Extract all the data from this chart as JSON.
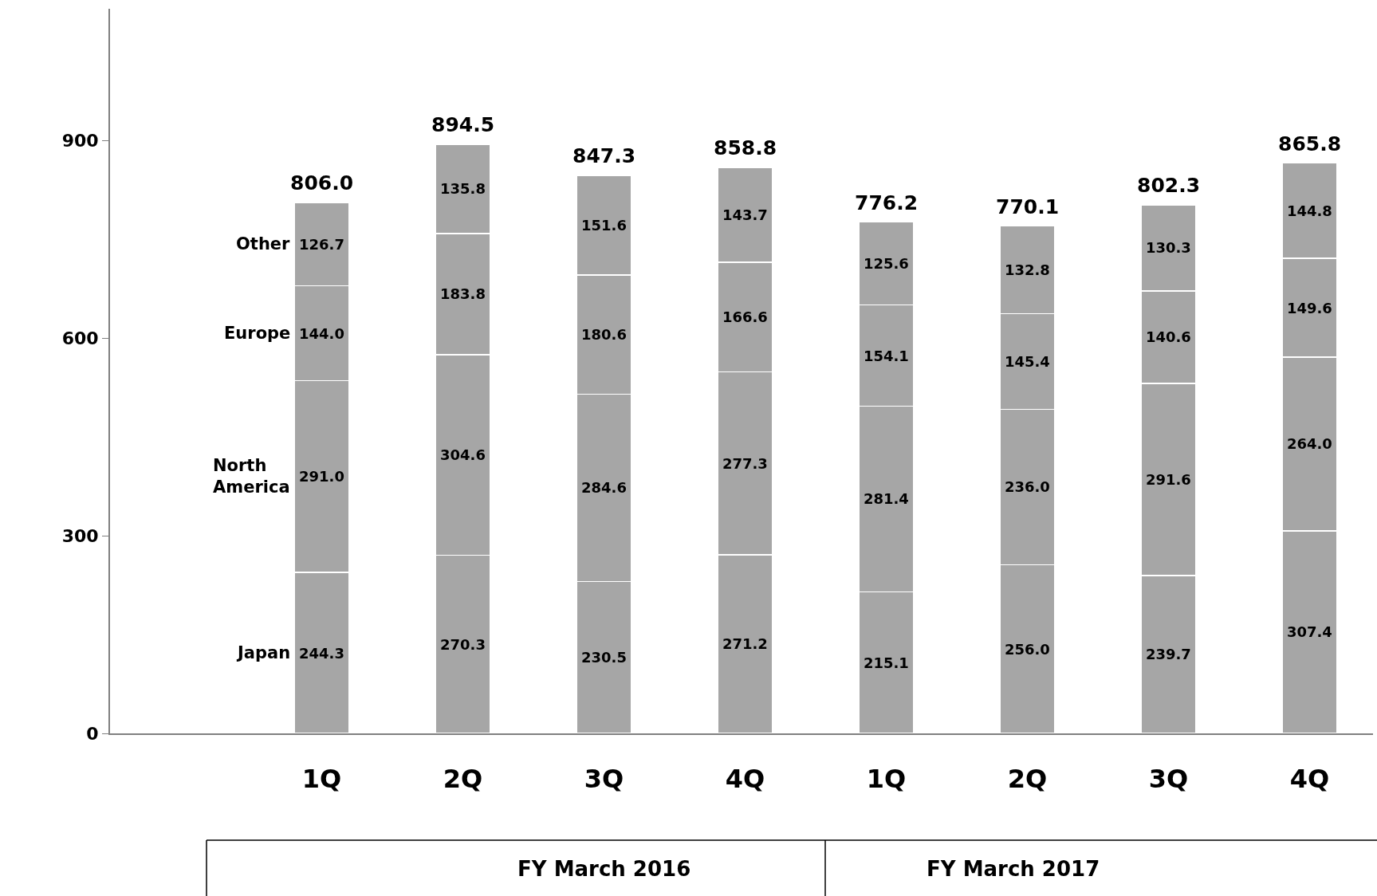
{
  "chart_data": {
    "type": "bar",
    "stacked": true,
    "legend": false,
    "categories": [
      "1Q",
      "2Q",
      "3Q",
      "4Q",
      "1Q",
      "2Q",
      "3Q",
      "4Q"
    ],
    "series": [
      {
        "name": "Japan",
        "color": "#a6a6a6",
        "values": [
          244.3,
          270.3,
          230.5,
          271.2,
          215.1,
          256.0,
          239.7,
          307.4
        ],
        "value_labels": [
          "244.3",
          "270.3",
          "230.5",
          "271.2",
          "215.1",
          "256.0",
          "239.7",
          "307.4"
        ]
      },
      {
        "name": "North America",
        "color": "#a6a6a6",
        "values": [
          291.0,
          304.6,
          284.6,
          277.3,
          281.4,
          236.0,
          291.6,
          264.0
        ],
        "value_labels": [
          "291.0",
          "304.6",
          "284.6",
          "277.3",
          "281.4",
          "236.0",
          "291.6",
          "264.0"
        ]
      },
      {
        "name": "Europe",
        "color": "#a6a6a6",
        "values": [
          144.0,
          183.8,
          180.6,
          166.6,
          154.1,
          145.4,
          140.6,
          149.6
        ],
        "value_labels": [
          "144.0",
          "183.8",
          "180.6",
          "166.6",
          "154.1",
          "145.4",
          "140.6",
          "149.6"
        ]
      },
      {
        "name": "Other",
        "color": "#a6a6a6",
        "values": [
          126.7,
          135.8,
          151.6,
          143.7,
          125.6,
          132.8,
          130.3,
          144.8
        ],
        "value_labels": [
          "126.7",
          "135.8",
          "151.6",
          "143.7",
          "125.6",
          "132.8",
          "130.3",
          "144.8"
        ]
      }
    ],
    "totals": [
      "806.0",
      "894.5",
      "847.3",
      "858.8",
      "776.2",
      "770.1",
      "802.3",
      "865.8"
    ],
    "ylim": [
      0,
      1100
    ],
    "yticks": [
      0,
      300,
      600,
      900
    ],
    "annotations": [
      "FY March 2016",
      "FY March 2017"
    ]
  }
}
